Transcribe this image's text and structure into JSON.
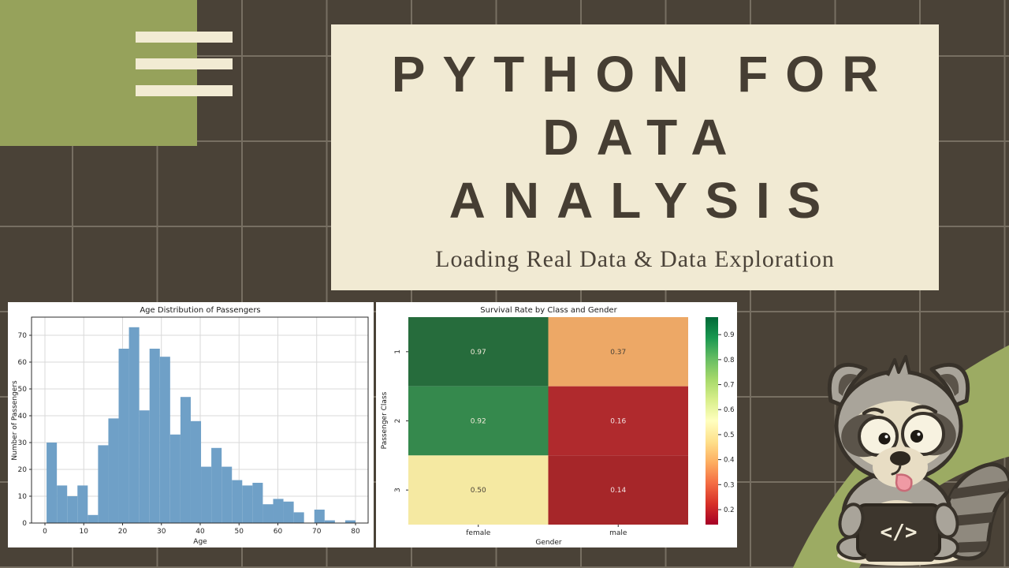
{
  "background": {
    "color": "#4a4237",
    "grid_line_color": "#80786a"
  },
  "decor": {
    "olive_rect_color": "#96a25b",
    "menu_bar_color": "#f2ebd3",
    "swoosh_color": "#9cab63"
  },
  "title_card": {
    "bg_color": "#f1ead3",
    "text_color": "#463e33",
    "title_lines": [
      "PYTHON FOR",
      "DATA",
      "ANALYSIS"
    ],
    "subtitle": "Loading Real Data & Data Exploration"
  },
  "chart_data": [
    {
      "type": "bar",
      "title": "Age Distribution of Passengers",
      "xlabel": "Age",
      "ylabel": "Number of Passengers",
      "bin_start": 0.42,
      "bin_width": 2.6527,
      "values": [
        30,
        14,
        10,
        14,
        3,
        29,
        39,
        65,
        73,
        42,
        65,
        62,
        33,
        47,
        38,
        21,
        28,
        21,
        16,
        14,
        15,
        7,
        9,
        8,
        4,
        0,
        5,
        1,
        0,
        1
      ],
      "xticks": [
        0,
        10,
        20,
        30,
        40,
        50,
        60,
        70,
        80
      ],
      "yticks": [
        0,
        10,
        20,
        30,
        40,
        50,
        60,
        70
      ],
      "xlim": [
        -3.5,
        83.6
      ],
      "ylim": [
        0,
        76.8
      ],
      "bar_color": "#6fa0c7",
      "grid": true,
      "legend_position": "none"
    },
    {
      "type": "heatmap",
      "title": "Survival Rate by Class and Gender",
      "xlabel": "Gender",
      "ylabel": "Passenger Class",
      "columns": [
        "female",
        "male"
      ],
      "rows": [
        "1",
        "2",
        "3"
      ],
      "values": [
        [
          0.97,
          0.37
        ],
        [
          0.92,
          0.16
        ],
        [
          0.5,
          0.14
        ]
      ],
      "cell_labels": [
        [
          "0.97",
          "0.37"
        ],
        [
          "0.92",
          "0.16"
        ],
        [
          "0.50",
          "0.14"
        ]
      ],
      "cell_colors": [
        [
          "#266c3c",
          "#eda866"
        ],
        [
          "#35894d",
          "#b02a2d"
        ],
        [
          "#f5e9a2",
          "#a62629"
        ]
      ],
      "cell_text_colors": [
        [
          "#f0ead8",
          "#4a4237"
        ],
        [
          "#f0ead8",
          "#f3e2e2"
        ],
        [
          "#4a4237",
          "#f3e2e2"
        ]
      ],
      "colorbar": {
        "vmin": 0.14,
        "vmax": 0.97,
        "tick_values": [
          0.9,
          0.8,
          0.7,
          0.6,
          0.5,
          0.4,
          0.3,
          0.2
        ],
        "colors_bottom_to_top": [
          "#a50026",
          "#d73027",
          "#f46d43",
          "#fdae61",
          "#fee08b",
          "#ffffbf",
          "#d9ef8b",
          "#a6d96a",
          "#66bd63",
          "#1a9850",
          "#006837"
        ]
      },
      "grid": false,
      "legend_position": "colorbar-right"
    }
  ],
  "mascot": {
    "description": "raccoon holding code tablet",
    "code_glyph": "</>"
  }
}
